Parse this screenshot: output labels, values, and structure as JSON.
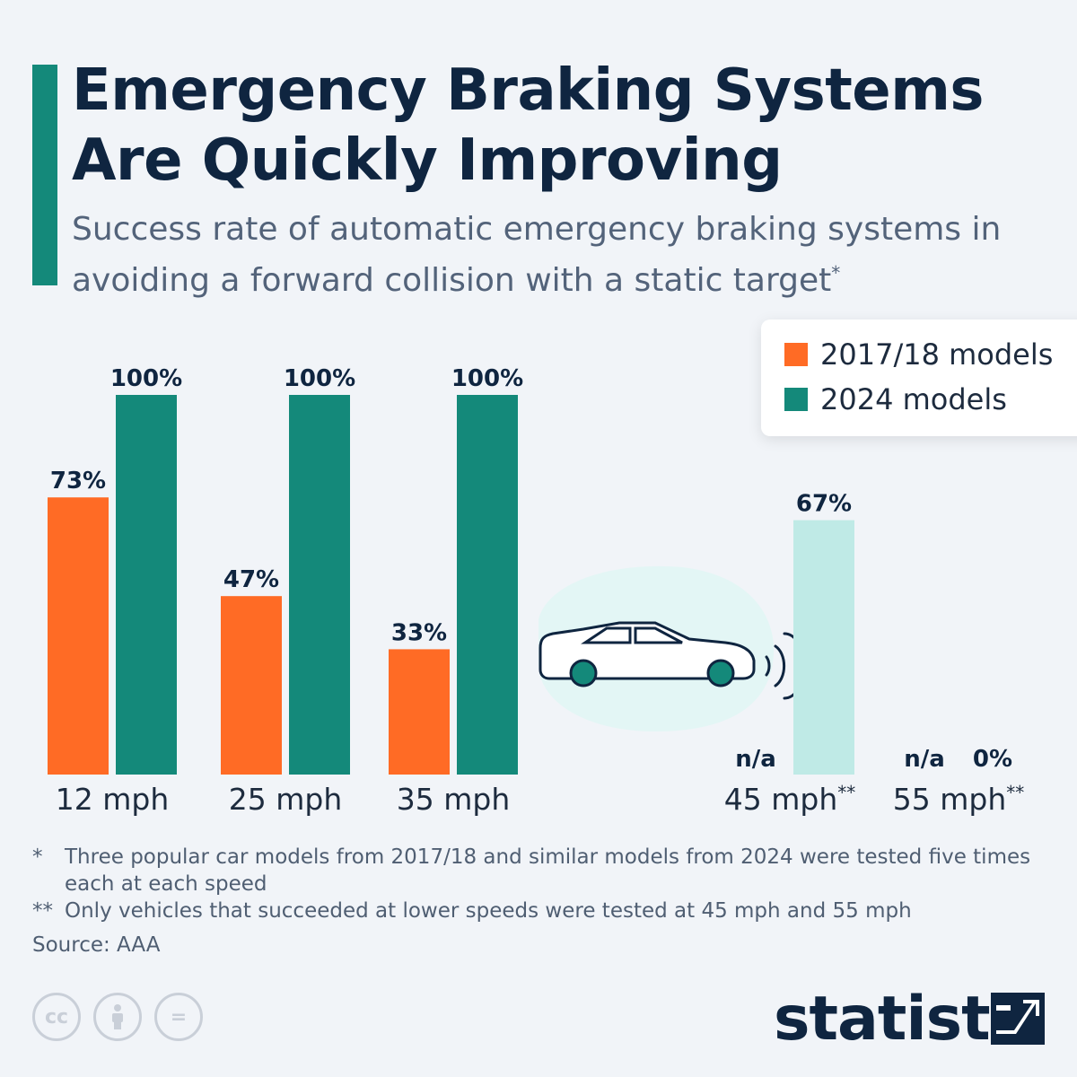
{
  "title": "Emergency Braking Systems Are Quickly Improving",
  "subtitle": "Success rate of automatic emergency braking systems in avoiding a forward collision with a static target",
  "subtitle_mark": "*",
  "colors": {
    "accent": "#14897a",
    "series_2017": "#ff6b25",
    "series_2024": "#14897a",
    "series_2024_light": "#bfeae6",
    "title": "#0f2540"
  },
  "chart_data": {
    "type": "bar",
    "categories": [
      "12 mph",
      "25 mph",
      "35 mph",
      "45 mph",
      "55 mph"
    ],
    "category_marks": [
      "",
      "",
      "",
      "**",
      "**"
    ],
    "series": [
      {
        "name": "2017/18 models",
        "values": [
          73,
          47,
          33,
          null,
          null
        ],
        "labels": [
          "73%",
          "47%",
          "33%",
          "n/a",
          "n/a"
        ]
      },
      {
        "name": "2024 models",
        "values": [
          100,
          100,
          100,
          67,
          0
        ],
        "labels": [
          "100%",
          "100%",
          "100%",
          "67%",
          "0%"
        ]
      }
    ],
    "ylim": [
      0,
      100
    ],
    "legend_position": "top-right"
  },
  "footnotes": [
    {
      "mark": "*",
      "text": "Three popular car models from 2017/18 and similar models from 2024 were tested five times each at each speed"
    },
    {
      "mark": "**",
      "text": "Only vehicles that succeeded at lower speeds were tested at 45 mph and 55 mph"
    }
  ],
  "source": "Source: AAA",
  "license_icons": [
    {
      "icon": "creative-commons-icon",
      "glyph": "cc"
    },
    {
      "icon": "attribution-icon",
      "glyph": ""
    },
    {
      "icon": "no-derivatives-icon",
      "glyph": "="
    }
  ],
  "brand": "statista"
}
